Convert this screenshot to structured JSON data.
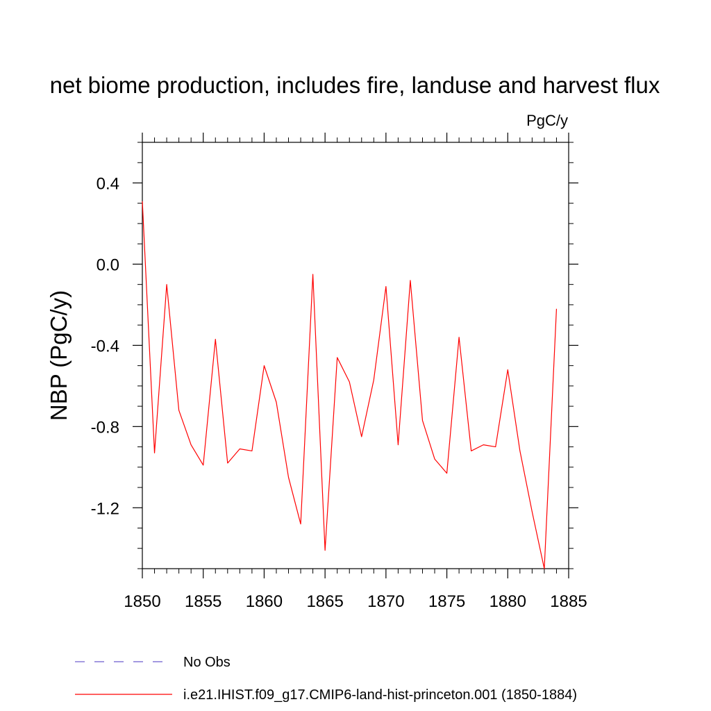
{
  "chart_data": {
    "type": "line",
    "title": "net biome production, includes fire, landuse and harvest flux",
    "units": "PgC/y",
    "xlabel": "",
    "ylabel": "NBP  (PgC/y)",
    "xlim": [
      1850,
      1885
    ],
    "ylim": [
      -1.5,
      0.6
    ],
    "x_ticks": [
      1850,
      1855,
      1860,
      1865,
      1870,
      1875,
      1880,
      1885
    ],
    "x_tick_labels": [
      "1850",
      "1855",
      "1860",
      "1865",
      "1870",
      "1875",
      "1880",
      "1885"
    ],
    "y_ticks": [
      0.4,
      0.0,
      -0.4,
      -0.8,
      -1.2
    ],
    "y_tick_labels": [
      "0.4",
      "0.0",
      "-0.4",
      "-0.8",
      "-1.2"
    ],
    "grid": false,
    "legend_position": "bottom",
    "series": [
      {
        "name": "No Obs",
        "color": "#6a5acd",
        "dash": "dashed",
        "x": [],
        "y": []
      },
      {
        "name": "i.e21.IHIST.f09_g17.CMIP6-land-hist-princeton.001 (1850-1884)",
        "color": "#ff0000",
        "dash": "solid",
        "x": [
          1850,
          1851,
          1852,
          1853,
          1854,
          1855,
          1856,
          1857,
          1858,
          1859,
          1860,
          1861,
          1862,
          1863,
          1864,
          1865,
          1866,
          1867,
          1868,
          1869,
          1870,
          1871,
          1872,
          1873,
          1874,
          1875,
          1876,
          1877,
          1878,
          1879,
          1880,
          1881,
          1882,
          1883,
          1884
        ],
        "y": [
          0.31,
          -0.93,
          -0.1,
          -0.72,
          -0.89,
          -0.99,
          -0.37,
          -0.98,
          -0.91,
          -0.92,
          -0.5,
          -0.68,
          -1.05,
          -1.28,
          -0.05,
          -1.41,
          -0.46,
          -0.58,
          -0.85,
          -0.57,
          -0.11,
          -0.89,
          -0.08,
          -0.77,
          -0.96,
          -1.03,
          -0.36,
          -0.92,
          -0.89,
          -0.9,
          -0.52,
          -0.92,
          -1.22,
          -1.5,
          -0.22
        ]
      }
    ]
  }
}
